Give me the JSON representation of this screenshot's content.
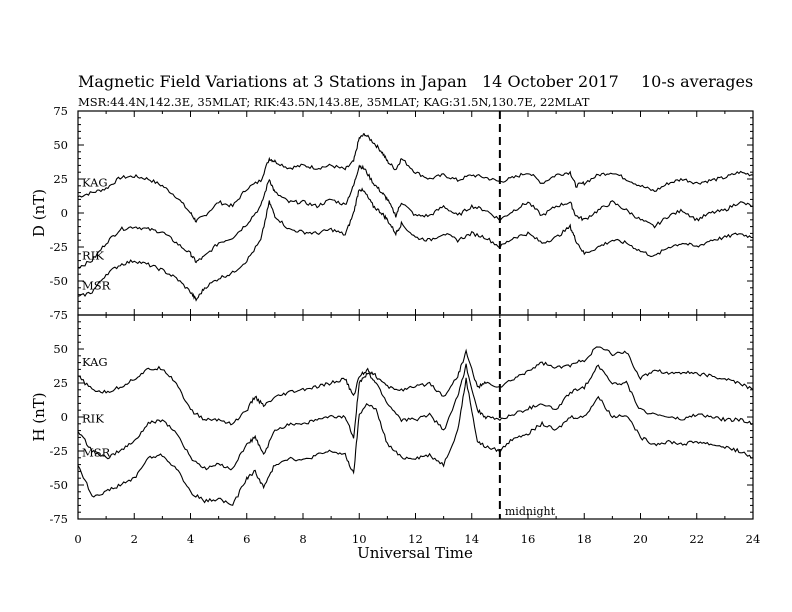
{
  "title": {
    "main": "Magnetic Field Variations at 3 Stations in Japan",
    "date": "14 October 2017",
    "avg": "10-s averages"
  },
  "subtitle": "MSR:44.4N,142.3E, 35MLAT;  RIK:43.5N,143.8E, 35MLAT;  KAG:31.5N,130.7E, 22MLAT",
  "chart_data": [
    {
      "type": "line",
      "panel": "top",
      "ylabel": "D (nT)",
      "xlabel": "",
      "xlim": [
        0,
        24
      ],
      "ylim": [
        -75,
        75
      ],
      "yticks": [
        75,
        50,
        25,
        0,
        -25,
        -50,
        -75
      ],
      "grid": false,
      "series": [
        {
          "name": "KAG",
          "x": [
            0,
            0.5,
            1,
            1.5,
            2,
            2.5,
            3,
            3.5,
            4,
            4.2,
            4.5,
            5,
            5.5,
            6,
            6.5,
            6.8,
            7,
            7.5,
            8,
            8.5,
            9,
            9.5,
            9.8,
            10,
            10.2,
            10.5,
            10.8,
            11,
            11.3,
            11.5,
            12,
            12.5,
            13,
            13.5,
            14,
            14.5,
            15,
            15.5,
            16,
            16.5,
            17,
            17.5,
            17.7,
            18,
            18.5,
            19,
            19.5,
            20,
            20.5,
            21,
            21.5,
            22,
            22.5,
            23,
            23.5,
            24
          ],
          "y": [
            12,
            15,
            18,
            26,
            27,
            25,
            20,
            12,
            0,
            -6,
            -2,
            8,
            5,
            18,
            24,
            40,
            38,
            33,
            35,
            33,
            35,
            32,
            38,
            55,
            58,
            52,
            45,
            38,
            32,
            40,
            30,
            25,
            28,
            24,
            28,
            26,
            23,
            26,
            30,
            22,
            28,
            30,
            20,
            22,
            28,
            30,
            25,
            20,
            16,
            22,
            25,
            22,
            24,
            26,
            30,
            28
          ]
        },
        {
          "name": "RIK",
          "x": [
            0,
            0.5,
            1,
            1.5,
            2,
            2.5,
            3,
            3.5,
            4,
            4.2,
            4.5,
            5,
            5.5,
            6,
            6.5,
            6.8,
            7,
            7.5,
            8,
            8.5,
            9,
            9.5,
            9.8,
            10,
            10.2,
            10.5,
            10.8,
            11,
            11.3,
            11.5,
            12,
            12.5,
            13,
            13.5,
            14,
            14.5,
            15,
            15.5,
            16,
            16.5,
            17,
            17.5,
            17.7,
            18,
            18.5,
            19,
            19.5,
            20,
            20.5,
            21,
            21.5,
            22,
            22.5,
            23,
            23.5,
            24
          ],
          "y": [
            -40,
            -35,
            -22,
            -12,
            -10,
            -12,
            -14,
            -22,
            -30,
            -36,
            -32,
            -22,
            -18,
            -8,
            5,
            25,
            15,
            8,
            8,
            5,
            10,
            6,
            20,
            35,
            32,
            22,
            15,
            10,
            -2,
            8,
            -2,
            -2,
            5,
            -2,
            5,
            2,
            -5,
            2,
            8,
            -2,
            5,
            8,
            -2,
            -5,
            2,
            8,
            2,
            -5,
            -10,
            -2,
            2,
            -5,
            0,
            2,
            8,
            5
          ]
        },
        {
          "name": "MSR",
          "x": [
            0,
            0.5,
            1,
            1.5,
            2,
            2.5,
            3,
            3.5,
            4,
            4.2,
            4.5,
            5,
            5.5,
            6,
            6.5,
            6.8,
            7,
            7.5,
            8,
            8.5,
            9,
            9.5,
            9.8,
            10,
            10.2,
            10.5,
            10.8,
            11,
            11.3,
            11.5,
            12,
            12.5,
            13,
            13.5,
            14,
            14.5,
            15,
            15.5,
            16,
            16.5,
            17,
            17.5,
            17.7,
            18,
            18.5,
            19,
            19.5,
            20,
            20.5,
            21,
            21.5,
            22,
            22.5,
            23,
            23.5,
            24
          ],
          "y": [
            -62,
            -58,
            -45,
            -38,
            -35,
            -38,
            -42,
            -48,
            -58,
            -64,
            -55,
            -48,
            -44,
            -35,
            -20,
            8,
            -2,
            -12,
            -14,
            -15,
            -12,
            -16,
            0,
            18,
            15,
            5,
            0,
            -5,
            -15,
            -8,
            -18,
            -20,
            -15,
            -20,
            -15,
            -18,
            -25,
            -18,
            -15,
            -22,
            -18,
            -10,
            -20,
            -30,
            -25,
            -20,
            -22,
            -28,
            -32,
            -25,
            -22,
            -25,
            -20,
            -18,
            -15,
            -18
          ]
        }
      ],
      "annotations": [
        {
          "text": "midnight",
          "x": 15
        }
      ]
    },
    {
      "type": "line",
      "panel": "bottom",
      "ylabel": "H (nT)",
      "xlabel": "Universal Time",
      "xlim": [
        0,
        24
      ],
      "ylim": [
        -75,
        75
      ],
      "xticks": [
        0,
        2,
        4,
        6,
        8,
        10,
        12,
        14,
        16,
        18,
        20,
        22,
        24
      ],
      "yticks": [
        50,
        25,
        0,
        -25,
        -50,
        -75
      ],
      "grid": false,
      "series": [
        {
          "name": "KAG",
          "x": [
            0,
            0.5,
            1,
            1.5,
            2,
            2.5,
            3,
            3.5,
            4,
            4.5,
            5,
            5.5,
            6,
            6.3,
            6.6,
            7,
            7.5,
            8,
            8.5,
            9,
            9.5,
            9.8,
            10,
            10.3,
            10.6,
            11,
            11.5,
            12,
            12.5,
            13,
            13.5,
            13.8,
            14.2,
            14.5,
            15,
            15.5,
            16,
            16.5,
            17,
            17.5,
            18,
            18.5,
            19,
            19.5,
            20,
            20.5,
            21,
            21.5,
            22,
            22.5,
            23,
            23.5,
            24
          ],
          "y": [
            30,
            20,
            18,
            22,
            28,
            35,
            36,
            25,
            5,
            -2,
            -2,
            -5,
            5,
            15,
            8,
            14,
            18,
            20,
            22,
            25,
            28,
            15,
            30,
            35,
            30,
            22,
            20,
            22,
            25,
            15,
            30,
            48,
            22,
            25,
            22,
            28,
            34,
            40,
            36,
            38,
            42,
            52,
            46,
            48,
            28,
            35,
            32,
            33,
            32,
            30,
            28,
            25,
            20
          ]
        },
        {
          "name": "RIK",
          "x": [
            0,
            0.5,
            1,
            1.5,
            2,
            2.5,
            3,
            3.5,
            4,
            4.5,
            5,
            5.5,
            6,
            6.3,
            6.6,
            7,
            7.5,
            8,
            8.5,
            9,
            9.5,
            9.8,
            10,
            10.3,
            10.6,
            11,
            11.5,
            12,
            12.5,
            13,
            13.5,
            13.8,
            14.2,
            14.5,
            15,
            15.5,
            16,
            16.5,
            17,
            17.5,
            18,
            18.5,
            19,
            19.5,
            20,
            20.5,
            21,
            21.5,
            22,
            22.5,
            23,
            23.5,
            24
          ],
          "y": [
            -10,
            -25,
            -30,
            -25,
            -18,
            -5,
            -2,
            -12,
            -30,
            -38,
            -35,
            -38,
            -20,
            -15,
            -28,
            -10,
            -5,
            -5,
            -2,
            0,
            0,
            -15,
            25,
            32,
            25,
            10,
            -2,
            -2,
            2,
            -10,
            15,
            38,
            5,
            0,
            -2,
            2,
            6,
            10,
            5,
            18,
            22,
            38,
            25,
            25,
            5,
            2,
            0,
            -2,
            2,
            0,
            -2,
            -2,
            -5
          ]
        },
        {
          "name": "MSR",
          "x": [
            0,
            0.5,
            1,
            1.5,
            2,
            2.5,
            3,
            3.5,
            4,
            4.5,
            5,
            5.5,
            6,
            6.3,
            6.6,
            7,
            7.5,
            8,
            8.5,
            9,
            9.5,
            9.8,
            10,
            10.3,
            10.6,
            11,
            11.5,
            12,
            12.5,
            13,
            13.5,
            13.8,
            14.2,
            14.5,
            15,
            15.5,
            16,
            16.5,
            17,
            17.5,
            18,
            18.5,
            19,
            19.5,
            20,
            20.5,
            21,
            21.5,
            22,
            22.5,
            23,
            23.5,
            24
          ],
          "y": [
            -35,
            -58,
            -55,
            -50,
            -45,
            -30,
            -28,
            -38,
            -55,
            -62,
            -60,
            -65,
            -45,
            -40,
            -52,
            -35,
            -30,
            -32,
            -28,
            -25,
            -28,
            -42,
            2,
            10,
            5,
            -20,
            -30,
            -30,
            -28,
            -35,
            -10,
            28,
            -18,
            -22,
            -25,
            -15,
            -12,
            -5,
            -10,
            0,
            0,
            15,
            0,
            2,
            -15,
            -20,
            -18,
            -20,
            -18,
            -20,
            -22,
            -25,
            -30
          ]
        }
      ]
    }
  ]
}
